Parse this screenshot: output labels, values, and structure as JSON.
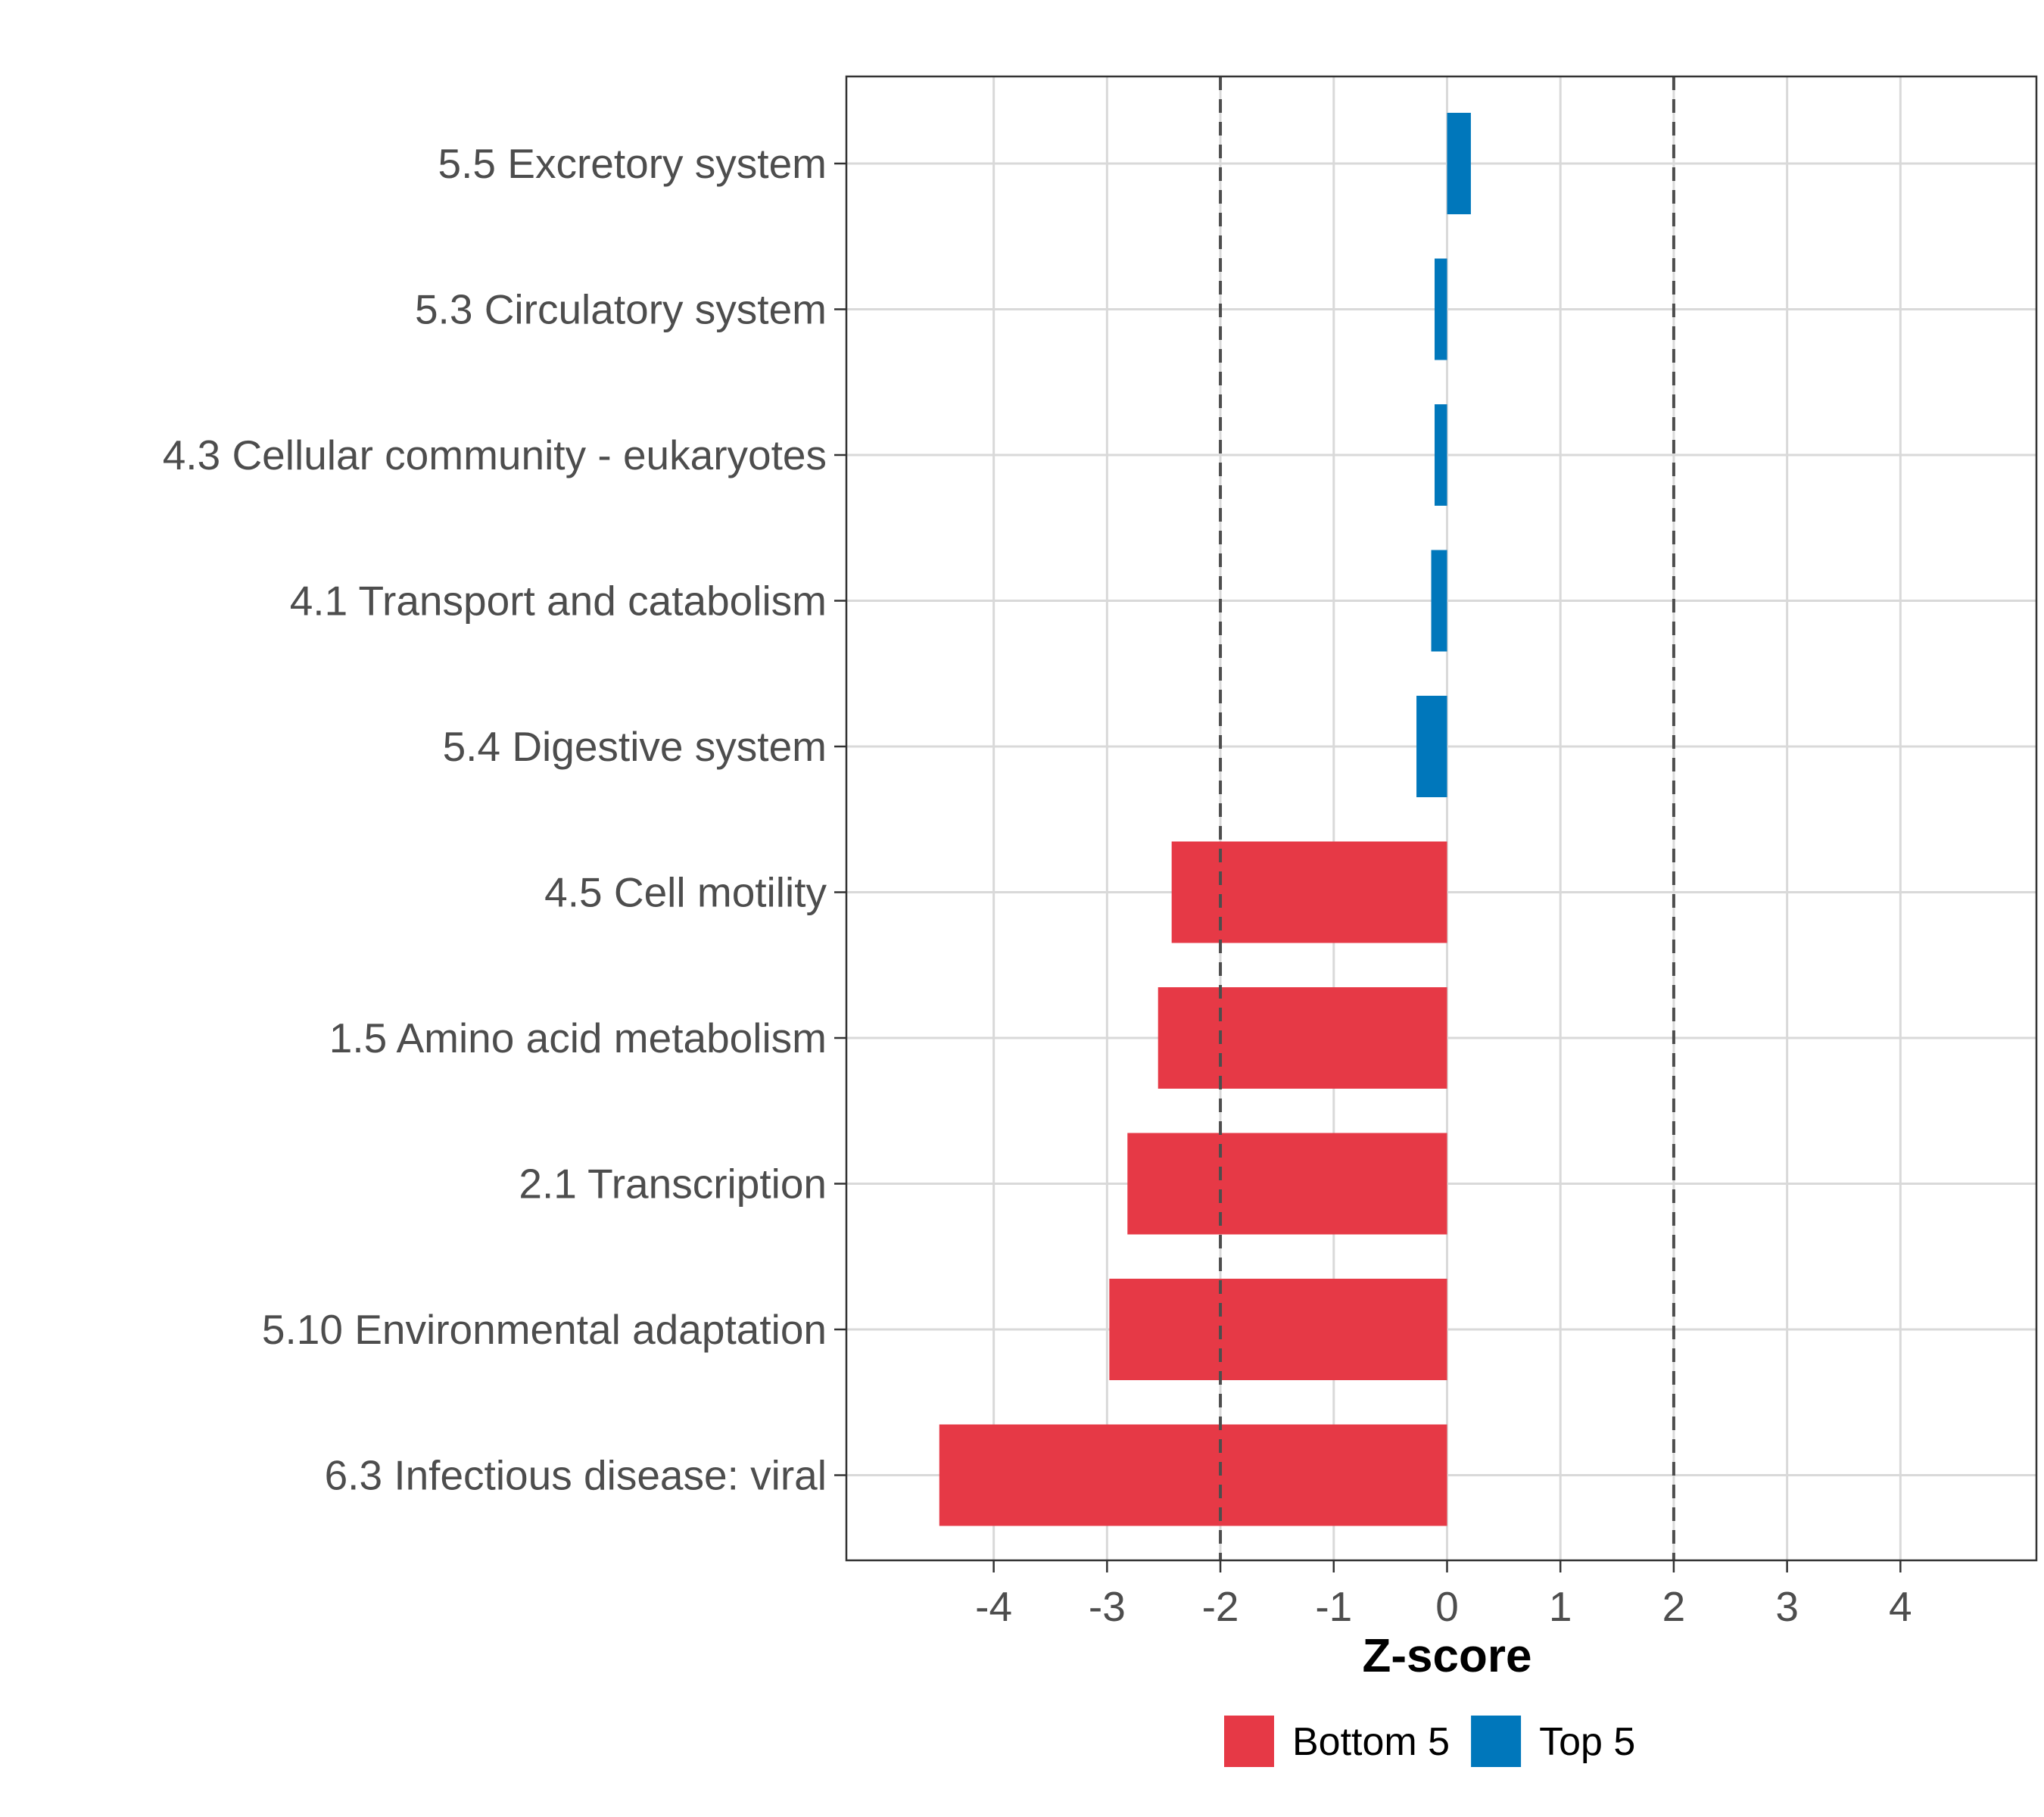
{
  "chart_data": {
    "type": "bar",
    "orientation": "horizontal",
    "xlabel": "Z-score",
    "ylabel": "",
    "xlim": [
      -5.3,
      5.2
    ],
    "xticks": [
      -4,
      -3,
      -2,
      -1,
      0,
      1,
      2,
      3,
      4
    ],
    "reference_lines": [
      -2,
      2
    ],
    "grid": true,
    "legend_position": "bottom",
    "categories": [
      "5.5 Excretory system",
      "5.3 Circulatory system",
      "4.3 Cellular community - eukaryotes",
      "4.1 Transport and catabolism",
      "5.4 Digestive system",
      "4.5 Cell motility",
      "1.5 Amino acid metabolism",
      "2.1 Transcription",
      "5.10 Environmental adaptation",
      "6.3 Infectious disease: viral"
    ],
    "values": [
      0.21,
      -0.11,
      -0.11,
      -0.14,
      -0.27,
      -2.43,
      -2.55,
      -2.82,
      -2.98,
      -4.48
    ],
    "groups": [
      "Top 5",
      "Top 5",
      "Top 5",
      "Top 5",
      "Top 5",
      "Bottom 5",
      "Bottom 5",
      "Bottom 5",
      "Bottom 5",
      "Bottom 5"
    ],
    "legend": [
      {
        "name": "Bottom 5",
        "color": "#E63946"
      },
      {
        "name": "Top 5",
        "color": "#0077BB"
      }
    ]
  }
}
